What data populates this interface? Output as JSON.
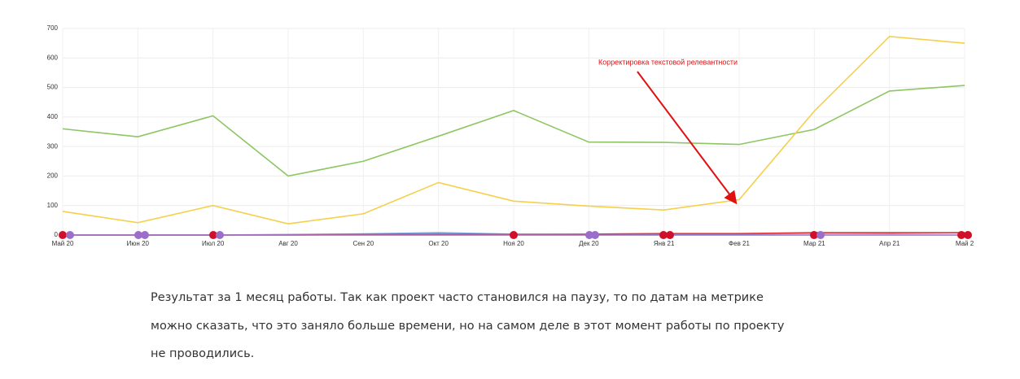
{
  "chart_data": {
    "type": "line",
    "categories": [
      "Май 20",
      "Июн 20",
      "Июл 20",
      "Авг 20",
      "Сен 20",
      "Окт 20",
      "Ноя 20",
      "Дек 20",
      "Янв 21",
      "Фев 21",
      "Мар 21",
      "Апр 21",
      "Май 2"
    ],
    "series": [
      {
        "color": "#8dc663",
        "values": [
          360,
          333,
          404,
          200,
          250,
          335,
          422,
          315,
          314,
          307,
          358,
          488,
          507
        ]
      },
      {
        "color": "#f4d04c",
        "values": [
          80,
          42,
          100,
          38,
          72,
          178,
          115,
          98,
          85,
          120,
          420,
          673,
          650
        ]
      },
      {
        "color": "#7fa6df",
        "values": [
          0,
          0,
          0,
          2,
          4,
          8,
          3,
          2,
          2,
          3,
          6,
          5,
          8
        ]
      },
      {
        "color": "#e23a3a",
        "values": [
          0,
          0,
          0,
          0,
          2,
          3,
          2,
          3,
          5,
          5,
          8,
          8,
          8
        ]
      },
      {
        "color": "#9b6fc9",
        "values": [
          0,
          0,
          0,
          0,
          0,
          0,
          0,
          0,
          0,
          0,
          0,
          0,
          0
        ]
      }
    ],
    "ylim": [
      0,
      700
    ],
    "yticks": [
      0,
      100,
      200,
      300,
      400,
      500,
      600,
      700
    ],
    "grid": true,
    "annotation": "Корректировка текстовой релевантности"
  },
  "caption": [
    "Результат за 1 месяц работы. Так как проект часто становился на паузу, то по датам на метрике",
    "можно сказать, что это заняло больше времени, но на самом деле в этот момент работы по проекту",
    "не проводились."
  ]
}
